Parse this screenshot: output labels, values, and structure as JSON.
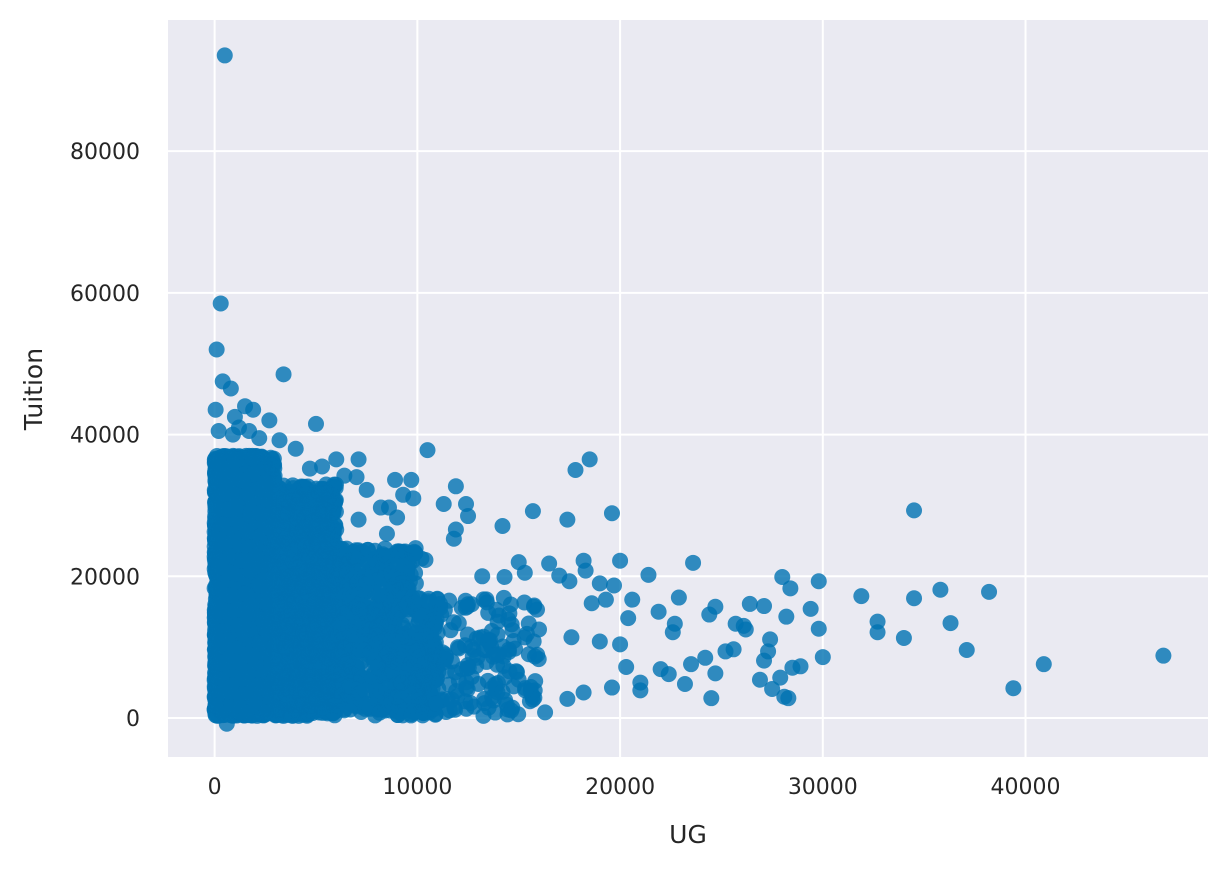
{
  "chart_data": {
    "type": "scatter",
    "title": "",
    "xlabel": "UG",
    "ylabel": "Tuition",
    "xlim": [
      -2300,
      49000
    ],
    "ylim": [
      -5500,
      98500
    ],
    "xticks": [
      0,
      10000,
      20000,
      30000,
      40000
    ],
    "yticks": [
      0,
      20000,
      40000,
      60000,
      80000
    ],
    "xtick_labels": [
      "0",
      "10000",
      "20000",
      "30000",
      "40000"
    ],
    "ytick_labels": [
      "0",
      "20000",
      "40000",
      "60000",
      "80000"
    ],
    "grid": true,
    "style": "seaborn-darkgrid",
    "colors": {
      "background": "#eaeaf2",
      "grid": "#ffffff",
      "marker": "#0072b2"
    },
    "marker_alpha": 0.8,
    "points": [
      [
        500,
        93500
      ],
      [
        300,
        58500
      ],
      [
        100,
        52000
      ],
      [
        400,
        47500
      ],
      [
        800,
        46500
      ],
      [
        3400,
        48500
      ],
      [
        50,
        43500
      ],
      [
        1500,
        44000
      ],
      [
        1900,
        43500
      ],
      [
        5000,
        41500
      ],
      [
        1000,
        42500
      ],
      [
        2700,
        42000
      ],
      [
        1200,
        41000
      ],
      [
        900,
        40000
      ],
      [
        200,
        40500
      ],
      [
        1700,
        40500
      ],
      [
        3200,
        39200
      ],
      [
        2200,
        39500
      ],
      [
        4000,
        38000
      ],
      [
        10500,
        37800
      ],
      [
        7100,
        36500
      ],
      [
        6000,
        36500
      ],
      [
        18500,
        36500
      ],
      [
        17800,
        35000
      ],
      [
        5300,
        35500
      ],
      [
        4700,
        35200
      ],
      [
        6400,
        34200
      ],
      [
        7000,
        34000
      ],
      [
        8900,
        33600
      ],
      [
        9700,
        33600
      ],
      [
        11900,
        32700
      ],
      [
        7500,
        32200
      ],
      [
        9300,
        31500
      ],
      [
        9800,
        31000
      ],
      [
        11300,
        30200
      ],
      [
        12400,
        30200
      ],
      [
        12500,
        28500
      ],
      [
        8200,
        29700
      ],
      [
        8600,
        29700
      ],
      [
        9000,
        28300
      ],
      [
        7100,
        28000
      ],
      [
        15700,
        29200
      ],
      [
        19600,
        28900
      ],
      [
        17400,
        28000
      ],
      [
        34500,
        29300
      ],
      [
        14200,
        27100
      ],
      [
        11900,
        26600
      ],
      [
        11800,
        25300
      ],
      [
        8500,
        26000
      ],
      [
        10200,
        22500
      ],
      [
        10400,
        22300
      ],
      [
        7900,
        22400
      ],
      [
        15000,
        22000
      ],
      [
        16500,
        21800
      ],
      [
        18200,
        22200
      ],
      [
        20000,
        22200
      ],
      [
        23600,
        21900
      ],
      [
        21400,
        20200
      ],
      [
        13200,
        20000
      ],
      [
        14300,
        19900
      ],
      [
        15300,
        20500
      ],
      [
        17000,
        20100
      ],
      [
        17500,
        19300
      ],
      [
        18300,
        20800
      ],
      [
        19000,
        19000
      ],
      [
        19700,
        18700
      ],
      [
        20600,
        16700
      ],
      [
        19300,
        16700
      ],
      [
        18600,
        16200
      ],
      [
        28000,
        19900
      ],
      [
        28400,
        18300
      ],
      [
        29800,
        19300
      ],
      [
        31900,
        17200
      ],
      [
        34500,
        16900
      ],
      [
        35800,
        18100
      ],
      [
        38200,
        17800
      ],
      [
        22900,
        17000
      ],
      [
        24700,
        15700
      ],
      [
        26400,
        16100
      ],
      [
        27100,
        15800
      ],
      [
        29400,
        15400
      ],
      [
        32700,
        13600
      ],
      [
        32700,
        12100
      ],
      [
        34000,
        11300
      ],
      [
        36300,
        13400
      ],
      [
        37100,
        9600
      ],
      [
        29800,
        12600
      ],
      [
        28200,
        14300
      ],
      [
        26100,
        13000
      ],
      [
        25700,
        13300
      ],
      [
        24400,
        14600
      ],
      [
        22700,
        13300
      ],
      [
        21900,
        15000
      ],
      [
        20400,
        14100
      ],
      [
        22600,
        12100
      ],
      [
        27400,
        11100
      ],
      [
        26200,
        12500
      ],
      [
        27100,
        8100
      ],
      [
        27300,
        9400
      ],
      [
        28500,
        7100
      ],
      [
        28900,
        7300
      ],
      [
        26900,
        5400
      ],
      [
        27500,
        4100
      ],
      [
        27900,
        5700
      ],
      [
        28100,
        3000
      ],
      [
        28300,
        2800
      ],
      [
        30000,
        8600
      ],
      [
        24500,
        2800
      ],
      [
        24700,
        6300
      ],
      [
        39400,
        4200
      ],
      [
        40900,
        7600
      ],
      [
        46800,
        8800
      ],
      [
        25200,
        9400
      ],
      [
        23500,
        7600
      ],
      [
        22400,
        6200
      ],
      [
        21000,
        5000
      ],
      [
        20300,
        7200
      ],
      [
        19600,
        4300
      ],
      [
        18200,
        3600
      ],
      [
        17400,
        2700
      ],
      [
        16300,
        800
      ],
      [
        15700,
        2600
      ],
      [
        14200,
        3700
      ],
      [
        13300,
        2700
      ],
      [
        11700,
        2600
      ],
      [
        10900,
        2000
      ],
      [
        10300,
        700
      ],
      [
        5200,
        2200
      ],
      [
        3400,
        300
      ],
      [
        600,
        -800
      ],
      [
        22000,
        6900
      ],
      [
        21000,
        3900
      ],
      [
        23200,
        4800
      ],
      [
        24200,
        8500
      ],
      [
        25600,
        9700
      ],
      [
        19000,
        10800
      ],
      [
        20000,
        10400
      ],
      [
        17600,
        11400
      ],
      [
        16000,
        12500
      ],
      [
        15500,
        9000
      ],
      [
        14000,
        9000
      ],
      [
        13500,
        11000
      ],
      [
        12000,
        10000
      ],
      [
        11000,
        12000
      ]
    ],
    "dense_cluster": {
      "count": 6500,
      "x_max_region": 16000,
      "y_range": [
        0,
        37000
      ],
      "note": "dense overlapping markers near low UG values"
    }
  }
}
